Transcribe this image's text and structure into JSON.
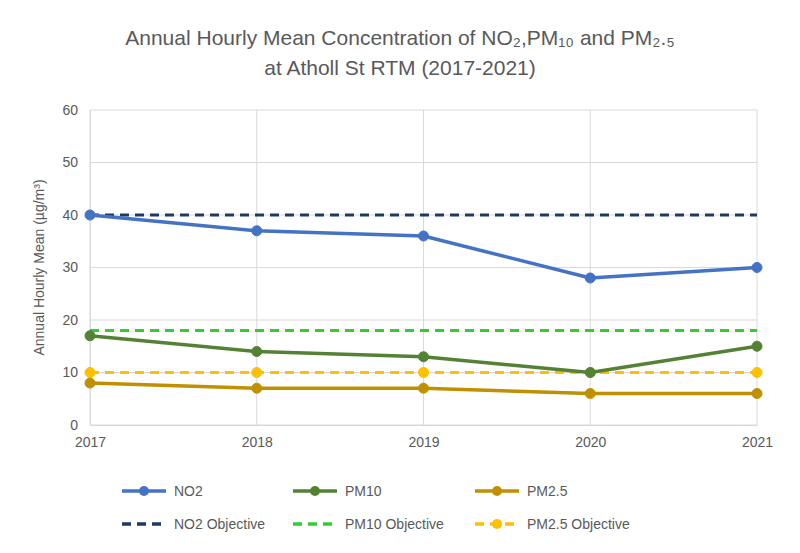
{
  "chart_data": {
    "type": "line",
    "title": "Annual Hourly Mean Concentration of NO₂,PM₁₀ and PM₂.₅ at Atholl St RTM (2017-2021)",
    "y_label": "Annual Hourly Mean (µg/m³)",
    "x": [
      2017,
      2018,
      2019,
      2020,
      2021
    ],
    "xlim": [
      2017,
      2021
    ],
    "xticks": [
      2017,
      2018,
      2019,
      2020,
      2021
    ],
    "ylim": [
      0,
      60
    ],
    "yticks": [
      0,
      10,
      20,
      30,
      40,
      50,
      60
    ],
    "grid": true,
    "legend": "bottom",
    "series": [
      {
        "name": "NO2",
        "color": "#4472c4",
        "marker": "circle",
        "line_style": "solid",
        "values": [
          40,
          37,
          36,
          28,
          30
        ]
      },
      {
        "name": "PM10",
        "color": "#548235",
        "marker": "circle",
        "line_style": "solid",
        "values": [
          17,
          14,
          13,
          10,
          15
        ]
      },
      {
        "name": "PM2.5",
        "color": "#bf9000",
        "marker": "circle",
        "line_style": "solid",
        "values": [
          8,
          7,
          7,
          6,
          6
        ]
      },
      {
        "name": "NO2 Objective",
        "color": "#1f3864",
        "marker": "none",
        "line_style": "dashed",
        "values": [
          40,
          40,
          40,
          40,
          40
        ]
      },
      {
        "name": "PM10 Objective",
        "color": "#33cc33",
        "marker": "none",
        "line_style": "dashed",
        "values": [
          18,
          18,
          18,
          18,
          18
        ]
      },
      {
        "name": "PM2.5 Objective",
        "color": "#ffc000",
        "marker": "circle",
        "line_style": "dashed",
        "values": [
          10,
          10,
          10,
          10,
          10
        ]
      }
    ]
  }
}
